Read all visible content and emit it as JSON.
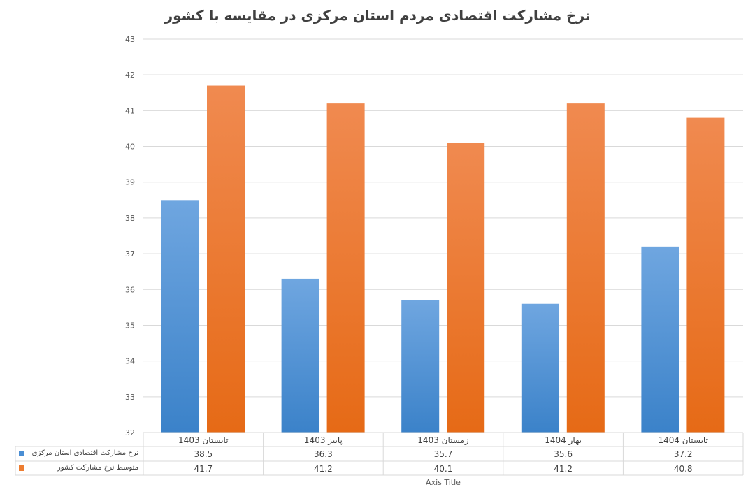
{
  "chart_data": {
    "type": "bar",
    "title": "نرخ مشارکت اقتصادی مردم استان مرکزی در مقایسه با کشور",
    "xlabel": "Axis Title",
    "ylabel": "",
    "ylim": [
      32,
      43
    ],
    "yticks": [
      32,
      33,
      34,
      35,
      36,
      37,
      38,
      39,
      40,
      41,
      42,
      43
    ],
    "grid": true,
    "legend": "data-table",
    "categories": [
      "تابستان 1403",
      "پاییز 1403",
      "زمستان 1403",
      "بهار 1404",
      "تابستان 1404"
    ],
    "series": [
      {
        "name": "نرخ مشارکت اقتصادی استان مرکزی",
        "color": "#4a8ed4",
        "values": [
          38.5,
          36.3,
          35.7,
          35.6,
          37.2
        ]
      },
      {
        "name": "متوسط نرخ مشارکت کشور",
        "color": "#ed7d31",
        "values": [
          41.7,
          41.2,
          40.1,
          41.2,
          40.8
        ]
      }
    ]
  }
}
